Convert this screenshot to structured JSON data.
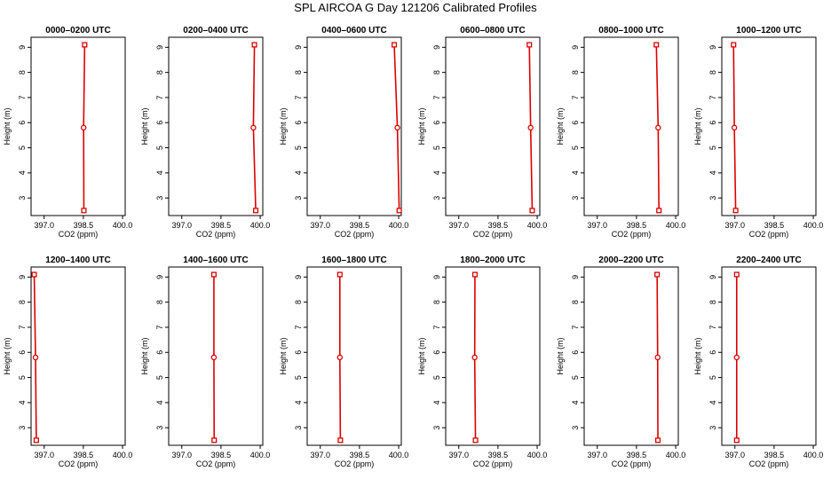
{
  "chart_data": {
    "type": "line",
    "title": "SPL AIRCOA G  Day 121206  Calibrated Profiles",
    "xlabel": "CO2 (ppm)",
    "ylabel": "Height (m)",
    "xlim": [
      396.5,
      400.1
    ],
    "ylim": [
      2.3,
      9.4
    ],
    "xticks": [
      397.0,
      398.5,
      400.0
    ],
    "xtick_labels": [
      "397.0",
      "398.5",
      "400.0"
    ],
    "yticks": [
      3,
      4,
      5,
      6,
      7,
      8,
      9
    ],
    "ytick_labels": [
      "3",
      "4",
      "5",
      "6",
      "7",
      "8",
      "9"
    ],
    "heights": [
      2.5,
      5.8,
      9.1
    ],
    "line_color": "#dd0000",
    "grid": false,
    "legend": "none",
    "panels": [
      {
        "title": "0000–0200 UTC",
        "values": [
          398.52,
          398.51,
          398.55
        ]
      },
      {
        "title": "0200–0400 UTC",
        "values": [
          399.83,
          399.74,
          399.78
        ]
      },
      {
        "title": "0400–0600 UTC",
        "values": [
          400.02,
          399.95,
          399.83
        ]
      },
      {
        "title": "0600–0800 UTC",
        "values": [
          399.81,
          399.75,
          399.7
        ]
      },
      {
        "title": "0800–1000 UTC",
        "values": [
          399.36,
          399.33,
          399.26
        ]
      },
      {
        "title": "1000–1200 UTC",
        "values": [
          397.03,
          396.98,
          396.95
        ]
      },
      {
        "title": "1200–1400 UTC",
        "values": [
          396.7,
          396.67,
          396.62
        ]
      },
      {
        "title": "1400–1600 UTC",
        "values": [
          398.24,
          398.23,
          398.23
        ]
      },
      {
        "title": "1600–1800 UTC",
        "values": [
          397.77,
          397.75,
          397.75
        ]
      },
      {
        "title": "1800–2000 UTC",
        "values": [
          397.64,
          397.61,
          397.62
        ]
      },
      {
        "title": "2000–2200 UTC",
        "values": [
          399.32,
          399.31,
          399.29
        ]
      },
      {
        "title": "2200–2400 UTC",
        "values": [
          397.07,
          397.07,
          397.07
        ]
      }
    ]
  }
}
